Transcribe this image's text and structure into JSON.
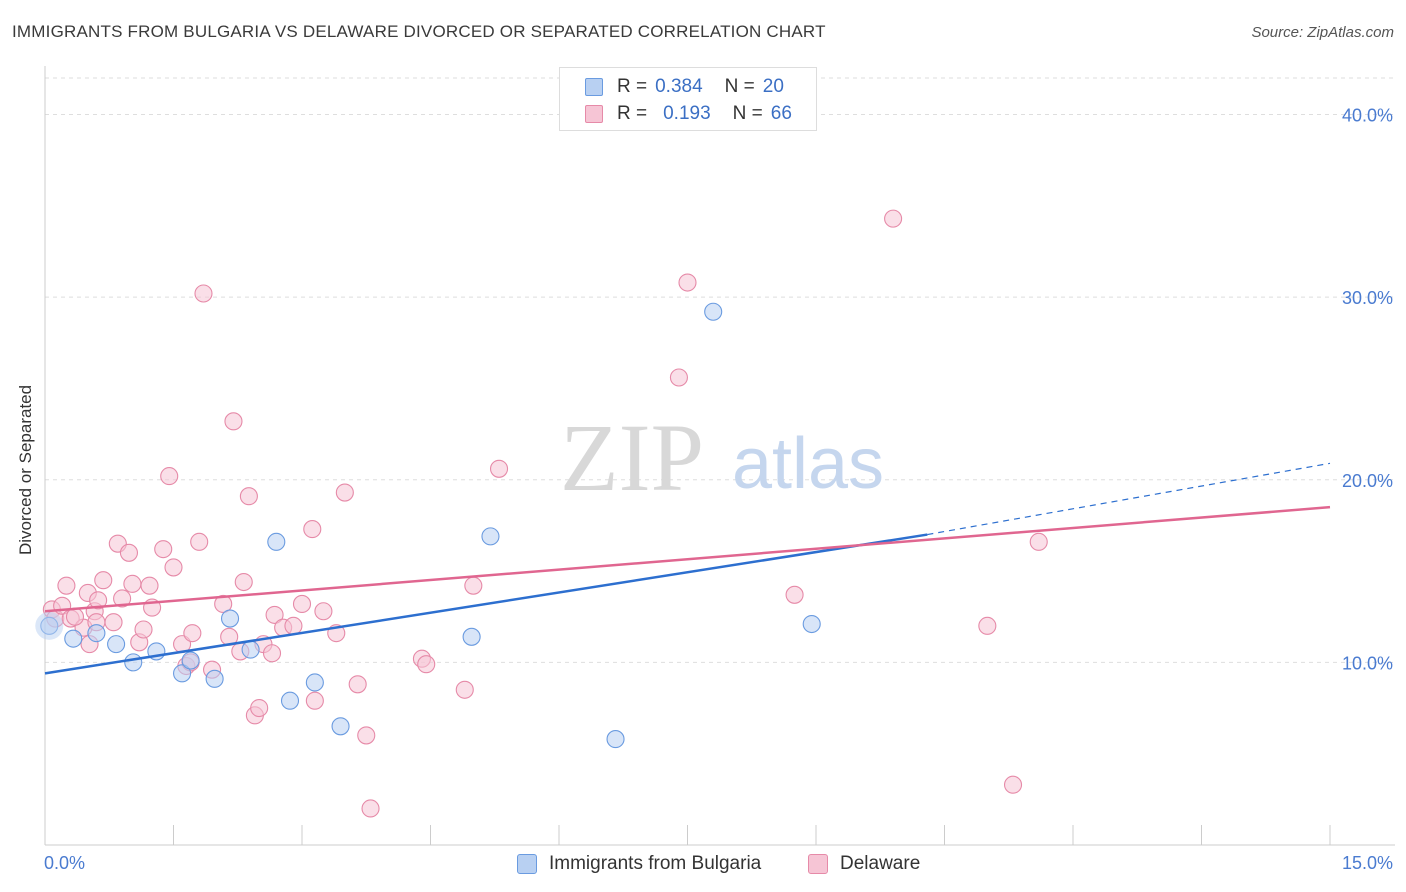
{
  "title": "IMMIGRANTS FROM BULGARIA VS DELAWARE DIVORCED OR SEPARATED CORRELATION CHART",
  "source": "Source: ZipAtlas.com",
  "watermark": {
    "zip": "ZIP",
    "atlas": "atlas"
  },
  "stats": [
    {
      "r_label": "R =",
      "r_value": "0.384",
      "n_label": "N =",
      "n_value": "20"
    },
    {
      "r_label": "R =",
      "r_value": "0.193",
      "n_label": "N =",
      "n_value": "66"
    }
  ],
  "legend": [
    {
      "label": "Immigrants from Bulgaria"
    },
    {
      "label": "Delaware"
    }
  ],
  "chart_data": {
    "type": "scatter",
    "title": "IMMIGRANTS FROM BULGARIA VS DELAWARE DIVORCED OR SEPARATED CORRELATION CHART",
    "xlabel": "",
    "ylabel": "Divorced or Separated",
    "xlim": [
      0,
      15
    ],
    "ylim": [
      0,
      42
    ],
    "x_tick_labels": [
      "0.0%",
      "15.0%"
    ],
    "y_ticks": [
      10,
      20,
      30,
      40
    ],
    "y_tick_labels": [
      "10.0%",
      "20.0%",
      "30.0%",
      "40.0%"
    ],
    "grid": "horizontal dashed",
    "legend_position": "bottom-center",
    "series": [
      {
        "name": "Immigrants from Bulgaria",
        "color": "#6a9be0",
        "fill": "#b8d0f2",
        "line_color": "#2d6fcf",
        "r": 0.384,
        "n": 20,
        "trend": {
          "x0": 0,
          "y0": 9.4,
          "x1": 10.3,
          "y1": 17.0,
          "dash_x1": 15,
          "dash_y1": 20.9
        },
        "points": [
          [
            0.05,
            12.0
          ],
          [
            0.33,
            11.3
          ],
          [
            0.6,
            11.6
          ],
          [
            0.83,
            11.0
          ],
          [
            1.03,
            10.0
          ],
          [
            1.3,
            10.6
          ],
          [
            1.6,
            9.4
          ],
          [
            1.7,
            10.1
          ],
          [
            1.98,
            9.1
          ],
          [
            2.16,
            12.4
          ],
          [
            2.4,
            10.7
          ],
          [
            2.7,
            16.6
          ],
          [
            2.86,
            7.9
          ],
          [
            3.15,
            8.9
          ],
          [
            3.45,
            6.5
          ],
          [
            4.98,
            11.4
          ],
          [
            5.2,
            16.9
          ],
          [
            6.66,
            5.8
          ],
          [
            7.8,
            29.2
          ],
          [
            8.95,
            12.1
          ]
        ]
      },
      {
        "name": "Delaware",
        "color": "#e68aa8",
        "fill": "#f6c5d5",
        "line_color": "#e06690",
        "r": 0.193,
        "n": 66,
        "trend": {
          "x0": 0,
          "y0": 12.8,
          "x1": 15,
          "y1": 18.5
        },
        "points": [
          [
            0.08,
            12.9
          ],
          [
            0.12,
            12.4
          ],
          [
            0.2,
            13.1
          ],
          [
            0.25,
            14.2
          ],
          [
            0.3,
            12.4
          ],
          [
            0.45,
            11.9
          ],
          [
            0.5,
            13.8
          ],
          [
            0.52,
            11.0
          ],
          [
            0.58,
            12.8
          ],
          [
            0.62,
            13.4
          ],
          [
            0.68,
            14.5
          ],
          [
            0.8,
            12.2
          ],
          [
            0.85,
            16.5
          ],
          [
            0.9,
            13.5
          ],
          [
            0.98,
            16.0
          ],
          [
            1.02,
            14.3
          ],
          [
            1.1,
            11.1
          ],
          [
            1.15,
            11.8
          ],
          [
            1.22,
            14.2
          ],
          [
            1.25,
            13.0
          ],
          [
            1.38,
            16.2
          ],
          [
            1.45,
            20.2
          ],
          [
            1.5,
            15.2
          ],
          [
            1.6,
            11.0
          ],
          [
            1.65,
            9.8
          ],
          [
            1.72,
            11.6
          ],
          [
            1.8,
            16.6
          ],
          [
            1.85,
            30.2
          ],
          [
            1.95,
            9.6
          ],
          [
            2.08,
            13.2
          ],
          [
            2.15,
            11.4
          ],
          [
            2.2,
            23.2
          ],
          [
            2.28,
            10.6
          ],
          [
            2.32,
            14.4
          ],
          [
            2.38,
            19.1
          ],
          [
            2.45,
            7.1
          ],
          [
            2.5,
            7.5
          ],
          [
            2.55,
            11.0
          ],
          [
            2.65,
            10.5
          ],
          [
            2.68,
            12.6
          ],
          [
            2.78,
            11.9
          ],
          [
            3.0,
            13.2
          ],
          [
            3.12,
            17.3
          ],
          [
            3.15,
            7.9
          ],
          [
            3.25,
            12.8
          ],
          [
            3.4,
            11.6
          ],
          [
            3.5,
            19.3
          ],
          [
            3.65,
            8.8
          ],
          [
            3.75,
            6.0
          ],
          [
            3.8,
            2.0
          ],
          [
            4.4,
            10.2
          ],
          [
            4.45,
            9.9
          ],
          [
            4.9,
            8.5
          ],
          [
            5.0,
            14.2
          ],
          [
            5.3,
            20.6
          ],
          [
            7.4,
            25.6
          ],
          [
            7.5,
            30.8
          ],
          [
            8.75,
            13.7
          ],
          [
            9.9,
            34.3
          ],
          [
            11.0,
            12.0
          ],
          [
            11.3,
            3.3
          ],
          [
            11.6,
            16.6
          ],
          [
            0.6,
            12.2
          ],
          [
            1.7,
            10.0
          ],
          [
            2.9,
            12.0
          ],
          [
            0.35,
            12.5
          ]
        ]
      }
    ]
  }
}
